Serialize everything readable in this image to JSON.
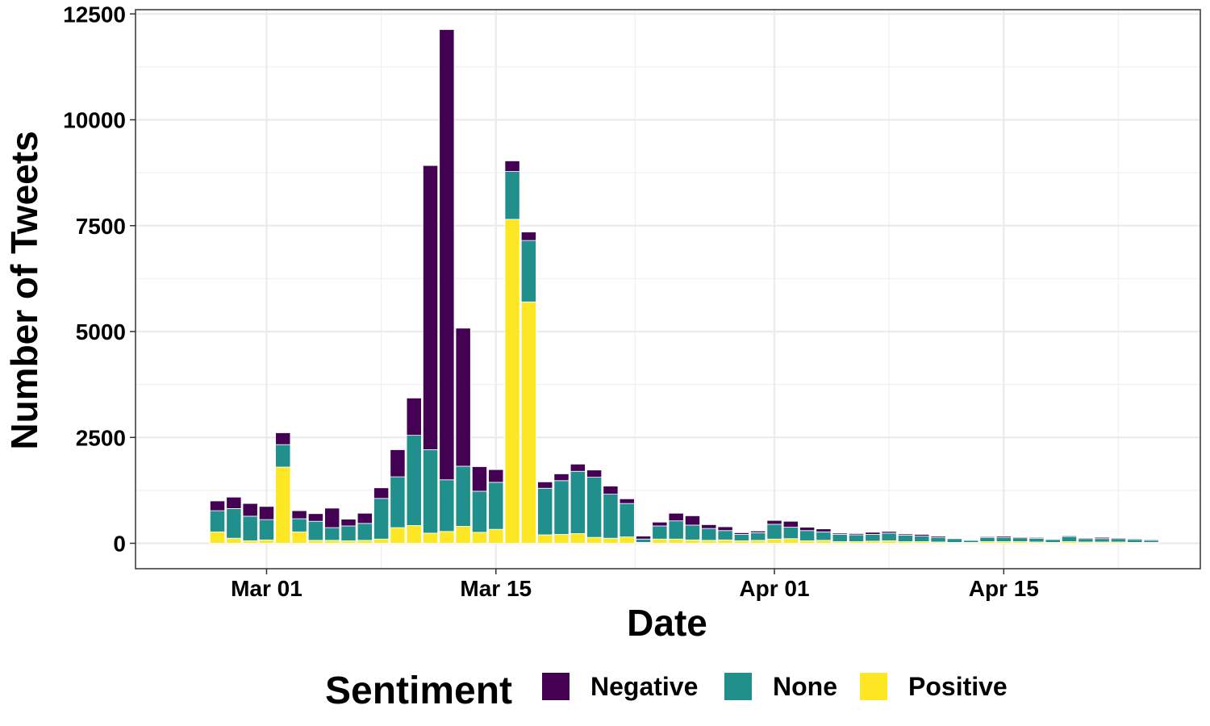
{
  "chart_data": {
    "type": "bar",
    "stacked": true,
    "xlabel": "Date",
    "ylabel": "Number of Tweets",
    "ylim": [
      -600,
      12600
    ],
    "xlim": [
      "2020-02-22",
      "2020-04-27"
    ],
    "yticks": [
      0,
      2500,
      5000,
      7500,
      10000,
      12500
    ],
    "yticks_labels": [
      "0",
      "2500",
      "5000",
      "7500",
      "10000",
      "12500"
    ],
    "xticks": [
      "2020-03-01",
      "2020-03-15",
      "2020-04-01",
      "2020-04-15"
    ],
    "xticks_labels": [
      "Mar 01",
      "Mar 15",
      "Apr 01",
      "Apr 15"
    ],
    "grid": true,
    "legend": {
      "title": "Sentiment",
      "placement": "bottom"
    },
    "colors": {
      "Negative": "#440154",
      "None": "#21908C",
      "Positive": "#FDE725"
    },
    "x": [
      "2020-02-27",
      "2020-02-28",
      "2020-02-29",
      "2020-03-01",
      "2020-03-02",
      "2020-03-03",
      "2020-03-04",
      "2020-03-05",
      "2020-03-06",
      "2020-03-07",
      "2020-03-08",
      "2020-03-09",
      "2020-03-10",
      "2020-03-11",
      "2020-03-12",
      "2020-03-13",
      "2020-03-14",
      "2020-03-15",
      "2020-03-16",
      "2020-03-17",
      "2020-03-18",
      "2020-03-19",
      "2020-03-20",
      "2020-03-21",
      "2020-03-22",
      "2020-03-23",
      "2020-03-24",
      "2020-03-25",
      "2020-03-26",
      "2020-03-27",
      "2020-03-28",
      "2020-03-29",
      "2020-03-30",
      "2020-03-31",
      "2020-04-01",
      "2020-04-02",
      "2020-04-03",
      "2020-04-04",
      "2020-04-05",
      "2020-04-06",
      "2020-04-07",
      "2020-04-08",
      "2020-04-09",
      "2020-04-10",
      "2020-04-11",
      "2020-04-12",
      "2020-04-13",
      "2020-04-14",
      "2020-04-15",
      "2020-04-16",
      "2020-04-17",
      "2020-04-18",
      "2020-04-19",
      "2020-04-20",
      "2020-04-21",
      "2020-04-22",
      "2020-04-23",
      "2020-04-24"
    ],
    "series": [
      {
        "name": "Positive",
        "values": [
          270,
          120,
          60,
          80,
          1800,
          270,
          70,
          70,
          60,
          70,
          100,
          370,
          420,
          240,
          280,
          400,
          260,
          330,
          7650,
          5700,
          200,
          210,
          230,
          140,
          120,
          150,
          20,
          100,
          100,
          80,
          70,
          80,
          60,
          70,
          100,
          110,
          60,
          70,
          40,
          40,
          50,
          60,
          40,
          40,
          30,
          20,
          20,
          40,
          40,
          40,
          30,
          20,
          40,
          30,
          30,
          30,
          20,
          20
        ]
      },
      {
        "name": "None",
        "values": [
          500,
          700,
          580,
          480,
          530,
          310,
          450,
          300,
          350,
          400,
          960,
          1200,
          2130,
          1970,
          1220,
          1420,
          970,
          1110,
          1130,
          1450,
          1100,
          1270,
          1470,
          1420,
          1040,
          790,
          80,
          310,
          430,
          350,
          280,
          220,
          150,
          180,
          350,
          270,
          240,
          200,
          170,
          160,
          160,
          180,
          150,
          130,
          110,
          90,
          50,
          100,
          100,
          90,
          90,
          70,
          120,
          80,
          80,
          80,
          70,
          50
        ]
      },
      {
        "name": "Negative",
        "values": [
          230,
          270,
          300,
          310,
          280,
          190,
          180,
          460,
          160,
          240,
          250,
          640,
          880,
          6710,
          10630,
          3260,
          580,
          300,
          250,
          200,
          150,
          160,
          170,
          170,
          190,
          110,
          70,
          90,
          180,
          220,
          90,
          90,
          40,
          40,
          90,
          140,
          80,
          70,
          30,
          30,
          50,
          40,
          30,
          40,
          30,
          10,
          10,
          20,
          30,
          20,
          20,
          10,
          20,
          20,
          30,
          20,
          20,
          20
        ]
      }
    ]
  }
}
